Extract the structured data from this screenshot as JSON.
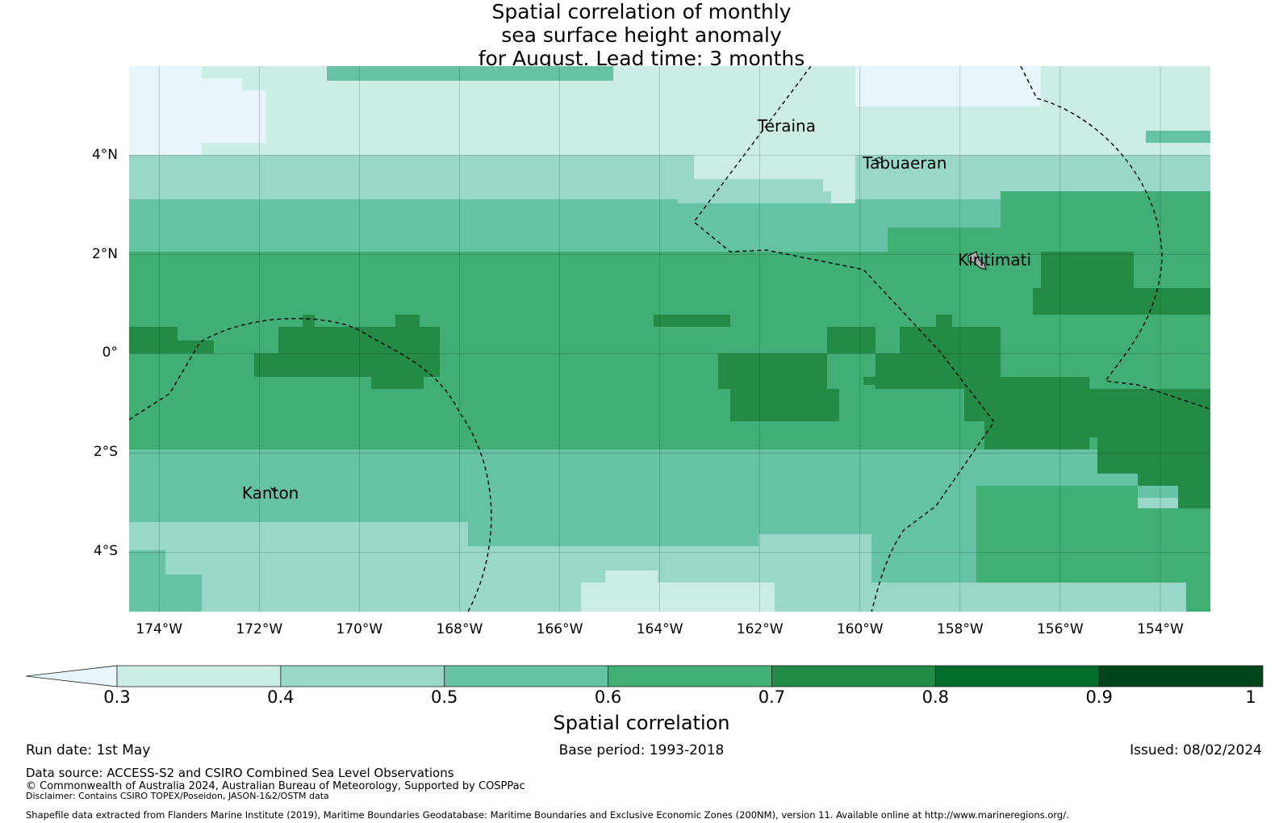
{
  "title": {
    "line1": "Spatial correlation of monthly",
    "line2": "sea surface height anomaly",
    "line3": "for August. Lead time: 3 months"
  },
  "map": {
    "lat_ticks": [
      "4°N",
      "2°N",
      "0°",
      "2°S",
      "4°S"
    ],
    "lon_ticks": [
      "174°W",
      "172°W",
      "170°W",
      "168°W",
      "166°W",
      "164°W",
      "162°W",
      "160°W",
      "158°W",
      "156°W",
      "154°W"
    ],
    "places": [
      {
        "name": "Teraina",
        "lon": -161.4,
        "lat": 4.6
      },
      {
        "name": "Tabuaeran",
        "lon": -159.3,
        "lat": 3.85
      },
      {
        "name": "Kiritimati",
        "lon": -157.4,
        "lat": 1.9
      },
      {
        "name": "Kanton",
        "lon": -171.7,
        "lat": -2.8
      }
    ],
    "lon_range": [
      -174.6,
      -153.0
    ],
    "lat_range": [
      -5.2,
      5.8
    ],
    "gridlines": true,
    "boundaries": "dashed maritime boundaries (200NM EEZ)"
  },
  "colorbar": {
    "label": "Spatial correlation",
    "ticks": [
      "0.3",
      "0.4",
      "0.5",
      "0.6",
      "0.7",
      "0.8",
      "0.9",
      "1"
    ],
    "colors": [
      "#e5f5f9",
      "#ccece6",
      "#99d8c9",
      "#66c2a4",
      "#41ae76",
      "#238b45",
      "#006d2c",
      "#00441b"
    ],
    "extend": "min"
  },
  "footer": {
    "run_date": "Run date: 1st May",
    "base_period": "Base period: 1993-2018",
    "issued": "Issued: 08/02/2024",
    "data_source": "Data source: ACCESS-S2 and CSIRO Combined Sea Level Observations",
    "copyright": "© Commonwealth of Australia 2024, Australian Bureau of Meteorology, Supported by COSPPac",
    "disclaimer": "Disclaimer: Contains CSIRO TOPEX/Poseidon, JASON-1&2/OSTM data",
    "shapefile": "Shapefile data extracted from Flanders Marine Institute (2019), Maritime Boundaries Geodatabase: Maritime Boundaries and Exclusive Economic Zones (200NM), version 11. Available online at http://www.marineregions.org/."
  }
}
